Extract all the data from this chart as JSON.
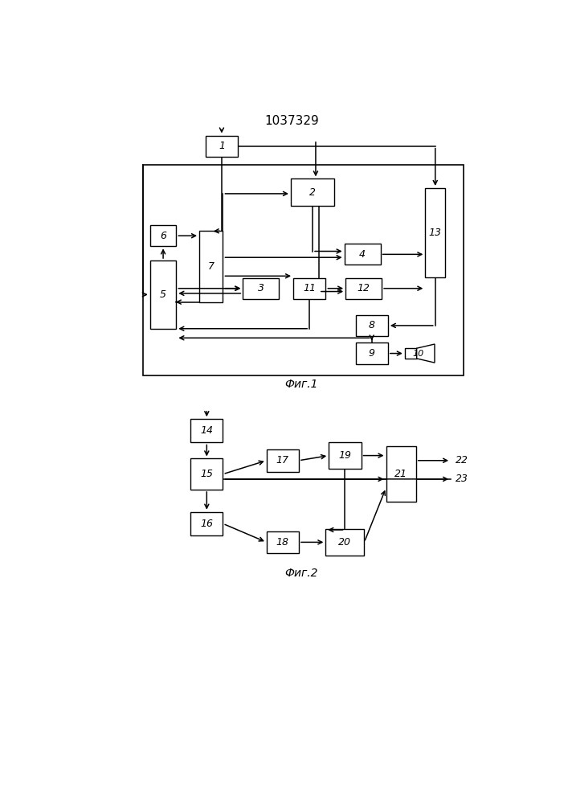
{
  "title": "1037329",
  "fig1_label": "Фиг.1",
  "fig2_label": "Фиг.2",
  "background": "#ffffff"
}
